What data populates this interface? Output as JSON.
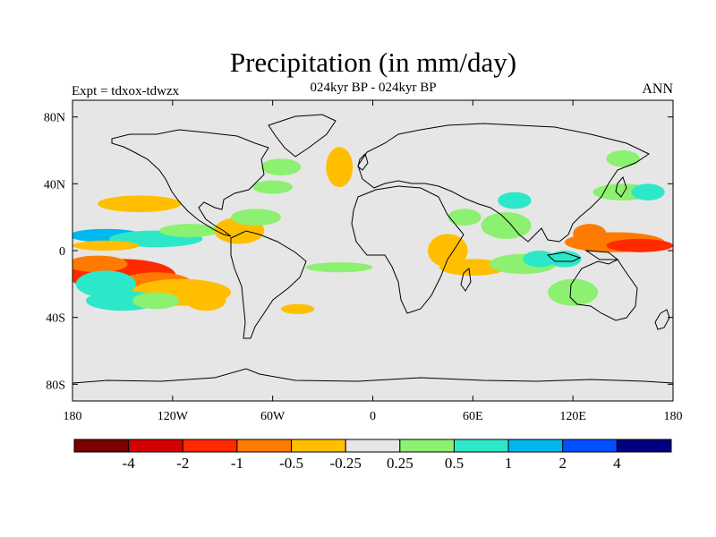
{
  "header": {
    "title": "Precipitation (in mm/day)",
    "subtitle": "024kyr BP - 024kyr BP",
    "left_label": "Expt = tdxox-tdwzx",
    "right_label": "ANN"
  },
  "chart_data": {
    "type": "heatmap",
    "title": "Precipitation (in mm/day)",
    "subtitle": "024kyr BP - 024kyr BP",
    "xlim": [
      -180,
      180
    ],
    "ylim": [
      -90,
      90
    ],
    "x_ticks": [
      -180,
      -120,
      -60,
      0,
      60,
      120,
      180
    ],
    "x_tick_labels": [
      "180",
      "120W",
      "60W",
      "0",
      "60E",
      "120E",
      "180"
    ],
    "y_ticks": [
      80,
      40,
      0,
      -40,
      -80
    ],
    "y_tick_labels": [
      "80N",
      "40N",
      "0",
      "40S",
      "80S"
    ],
    "colorbar": {
      "labels": [
        "-4",
        "-2",
        "-1",
        "-0.5",
        "-0.25",
        "0.25",
        "0.5",
        "1",
        "2",
        "4"
      ],
      "colors": [
        "#7a0000",
        "#d20000",
        "#ff2a00",
        "#ff7a00",
        "#ffbf00",
        "#e6e6e6",
        "#8cf070",
        "#2de8c8",
        "#00b8f0",
        "#0050ff",
        "#000080"
      ]
    },
    "background_color": "#e6e6e6",
    "anomalies": [
      {
        "lon": -150,
        "lat": -15,
        "rx": 32,
        "ry": 10,
        "level": -3
      },
      {
        "lon": -130,
        "lat": -20,
        "rx": 22,
        "ry": 7,
        "level": -2
      },
      {
        "lon": -165,
        "lat": -8,
        "rx": 18,
        "ry": 5,
        "level": -2
      },
      {
        "lon": -115,
        "lat": -25,
        "rx": 30,
        "ry": 8,
        "level": -1
      },
      {
        "lon": -100,
        "lat": -30,
        "rx": 12,
        "ry": 6,
        "level": -1
      },
      {
        "lon": -160,
        "lat": -20,
        "rx": 18,
        "ry": 8,
        "level": 2
      },
      {
        "lon": -150,
        "lat": -30,
        "rx": 22,
        "ry": 6,
        "level": 2
      },
      {
        "lon": -130,
        "lat": -30,
        "rx": 14,
        "ry": 5,
        "level": 1
      },
      {
        "lon": -160,
        "lat": 9,
        "rx": 22,
        "ry": 4,
        "level": 3
      },
      {
        "lon": -130,
        "lat": 7,
        "rx": 28,
        "ry": 5,
        "level": 2
      },
      {
        "lon": -110,
        "lat": 12,
        "rx": 18,
        "ry": 4,
        "level": 1
      },
      {
        "lon": -160,
        "lat": 3,
        "rx": 20,
        "ry": 3,
        "level": -1
      },
      {
        "lon": -140,
        "lat": 28,
        "rx": 25,
        "ry": 5,
        "level": -1
      },
      {
        "lon": -80,
        "lat": 12,
        "rx": 15,
        "ry": 8,
        "level": -1
      },
      {
        "lon": -70,
        "lat": 20,
        "rx": 15,
        "ry": 5,
        "level": 1
      },
      {
        "lon": -60,
        "lat": 38,
        "rx": 12,
        "ry": 4,
        "level": 1
      },
      {
        "lon": -55,
        "lat": 50,
        "rx": 12,
        "ry": 5,
        "level": 1
      },
      {
        "lon": -20,
        "lat": 50,
        "rx": 8,
        "ry": 12,
        "level": -1
      },
      {
        "lon": -20,
        "lat": -10,
        "rx": 20,
        "ry": 3,
        "level": 1
      },
      {
        "lon": -45,
        "lat": -35,
        "rx": 10,
        "ry": 3,
        "level": -1
      },
      {
        "lon": 45,
        "lat": 0,
        "rx": 12,
        "ry": 10,
        "level": -1
      },
      {
        "lon": 60,
        "lat": -10,
        "rx": 20,
        "ry": 5,
        "level": -1
      },
      {
        "lon": 55,
        "lat": 20,
        "rx": 10,
        "ry": 5,
        "level": 1
      },
      {
        "lon": 80,
        "lat": 15,
        "rx": 15,
        "ry": 8,
        "level": 1
      },
      {
        "lon": 85,
        "lat": 30,
        "rx": 10,
        "ry": 5,
        "level": 2
      },
      {
        "lon": 90,
        "lat": -8,
        "rx": 20,
        "ry": 6,
        "level": 1
      },
      {
        "lon": 100,
        "lat": -5,
        "rx": 10,
        "ry": 5,
        "level": 2
      },
      {
        "lon": 115,
        "lat": -5,
        "rx": 10,
        "ry": 5,
        "level": 2
      },
      {
        "lon": 145,
        "lat": 5,
        "rx": 30,
        "ry": 6,
        "level": -2
      },
      {
        "lon": 160,
        "lat": 3,
        "rx": 20,
        "ry": 4,
        "level": -3
      },
      {
        "lon": 130,
        "lat": 10,
        "rx": 10,
        "ry": 6,
        "level": -2
      },
      {
        "lon": 120,
        "lat": -25,
        "rx": 15,
        "ry": 8,
        "level": 1
      },
      {
        "lon": 150,
        "lat": 35,
        "rx": 18,
        "ry": 5,
        "level": 1
      },
      {
        "lon": 165,
        "lat": 35,
        "rx": 10,
        "ry": 5,
        "level": 2
      },
      {
        "lon": 150,
        "lat": 55,
        "rx": 10,
        "ry": 5,
        "level": 1
      }
    ]
  }
}
